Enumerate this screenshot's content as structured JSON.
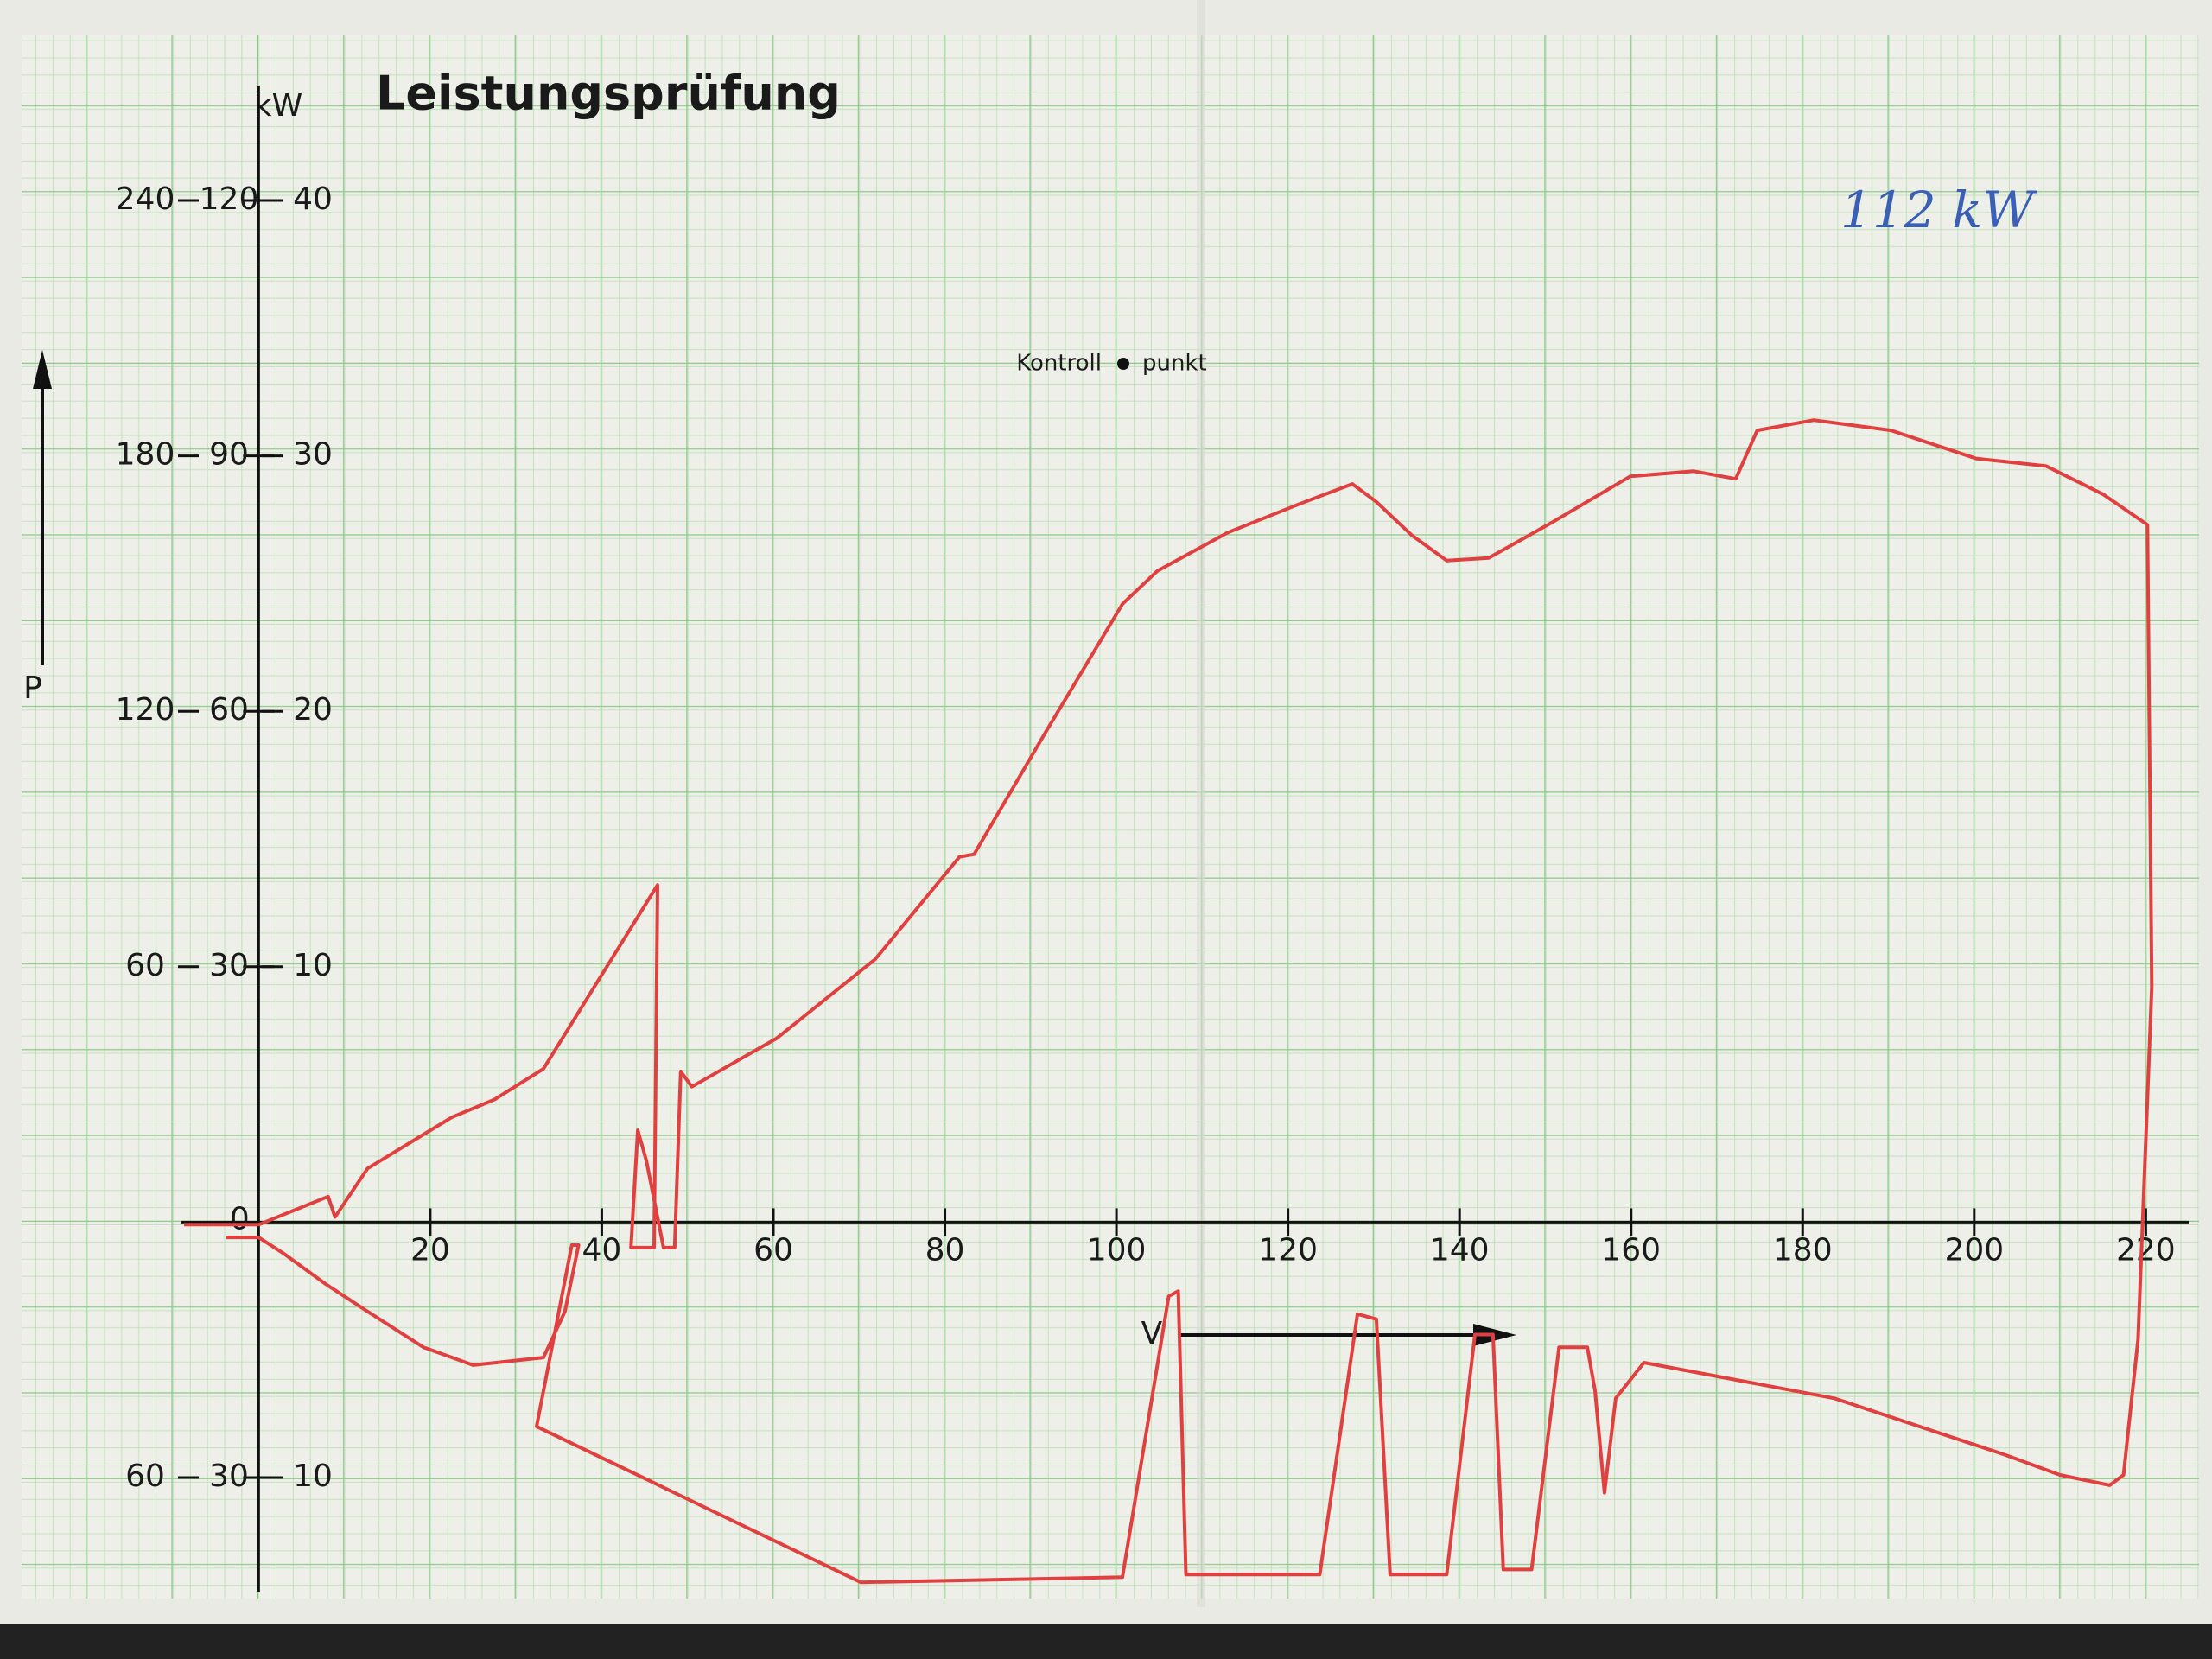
{
  "chart_data": {
    "type": "line",
    "title": "Leistungsprüfung",
    "y_label": "kW",
    "y_axis_symbol": "P",
    "x_axis_symbol": "V",
    "annotations": [
      "Kontroll",
      "punkt",
      "112 kW"
    ],
    "color": "#e0403f",
    "x": [
      -8.7,
      0,
      8.1,
      8.9,
      12.7,
      22.5,
      27.5,
      33.2,
      46.5,
      46.1,
      43.4,
      44.2,
      45.2,
      47.2,
      48.5,
      49.2,
      50.5,
      60.4,
      71.9,
      81.7,
      83.4,
      91.6,
      100.7,
      104.8,
      113.0,
      121.2,
      127.5,
      130.3,
      134.4,
      138.5,
      143.4,
      150.8,
      159.9,
      167.3,
      172.2,
      174.7,
      181.3,
      190.3,
      200.2,
      208.4,
      215.0,
      220.2,
      220.7,
      219.1,
      217.4,
      215.8,
      210.0,
      203.5,
      183.7,
      161.5,
      158.2,
      156.9,
      155.8,
      154.9,
      151.6,
      148.4,
      145.1,
      143.9,
      141.8,
      138.5,
      131.9,
      130.3,
      128.1,
      123.7,
      108.1,
      107.2,
      106.1,
      100.7,
      70.2,
      32.4,
      36.5,
      37.3,
      35.7,
      33.2,
      25.0,
      19.2,
      12.7,
      7.7,
      2.8,
      0,
      -3.8
    ],
    "values": [
      -0.1,
      -0.1,
      1.0,
      0.2,
      2.1,
      4.1,
      4.8,
      6.0,
      13.2,
      -1.0,
      -1.0,
      3.6,
      2.4,
      -1.0,
      -1.0,
      5.9,
      5.3,
      7.2,
      10.3,
      14.3,
      14.4,
      19.1,
      24.2,
      25.5,
      27.0,
      28.1,
      28.9,
      28.2,
      26.9,
      25.9,
      26.0,
      27.4,
      29.2,
      29.4,
      29.1,
      31.0,
      31.4,
      31.0,
      29.9,
      29.6,
      28.5,
      27.3,
      9.2,
      -4.6,
      -9.9,
      -10.3,
      -9.9,
      -9.1,
      -6.9,
      -5.5,
      -6.9,
      -10.6,
      -6.6,
      -4.9,
      -4.9,
      -13.6,
      -13.6,
      -4.4,
      -4.4,
      -13.8,
      -13.8,
      -3.8,
      -3.6,
      -13.8,
      -13.8,
      -2.7,
      -2.9,
      -13.9,
      -14.1,
      -8.0,
      -0.9,
      -0.9,
      -3.5,
      -5.3,
      -5.6,
      -4.9,
      -3.5,
      -2.4,
      -1.2,
      -0.6,
      -0.6
    ],
    "xlim": [
      -9,
      225
    ],
    "xticks": [
      20,
      40,
      60,
      80,
      100,
      120,
      140,
      160,
      180,
      200,
      220
    ],
    "ylim": [
      -14.5,
      44.5
    ],
    "yticks": [
      {
        "value": -10,
        "label": "10"
      },
      10,
      20,
      30,
      40
    ],
    "y2lim": [
      -43.5,
      133.5
    ],
    "y2ticks": [
      {
        "value": -30,
        "label": "30"
      },
      30,
      60,
      90,
      120
    ],
    "y3lim": [
      -87,
      267
    ],
    "y3ticks": [
      {
        "value": -60,
        "label": "60"
      },
      60,
      120,
      180,
      240
    ],
    "origin_label": "0",
    "grid": true
  }
}
